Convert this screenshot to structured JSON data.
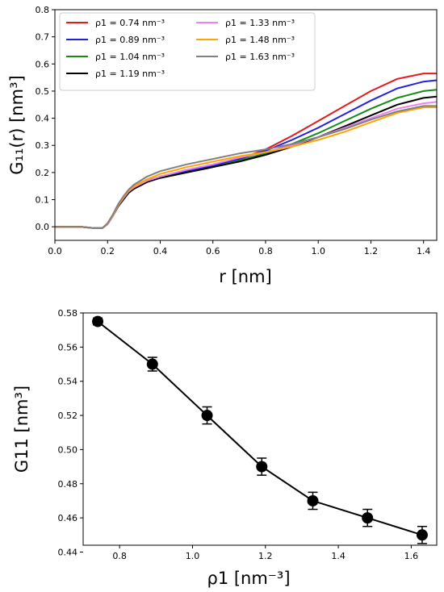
{
  "chart_data": [
    {
      "type": "line",
      "title": "",
      "xlabel": "r [nm]",
      "ylabel": "G₁₁(r) [nm³]",
      "xlim": [
        0.0,
        1.45
      ],
      "ylim": [
        -0.05,
        0.8
      ],
      "xticks": [
        "0.0",
        "0.2",
        "0.4",
        "0.6",
        "0.8",
        "1.0",
        "1.2",
        "1.4"
      ],
      "yticks": [
        "0.0",
        "0.1",
        "0.2",
        "0.3",
        "0.4",
        "0.5",
        "0.6",
        "0.7",
        "0.8"
      ],
      "legend_position": "top-left",
      "legend_columns": 2,
      "grid": false,
      "x": [
        0.0,
        0.05,
        0.1,
        0.15,
        0.18,
        0.2,
        0.22,
        0.24,
        0.26,
        0.28,
        0.3,
        0.35,
        0.4,
        0.5,
        0.6,
        0.7,
        0.8,
        0.9,
        1.0,
        1.1,
        1.2,
        1.3,
        1.4,
        1.45
      ],
      "series": [
        {
          "name": "ρ1 = 0.74 nm⁻³",
          "color": "#e41a1c",
          "values": [
            0.0,
            0.0,
            0.0,
            -0.005,
            -0.005,
            0.01,
            0.04,
            0.075,
            0.105,
            0.13,
            0.145,
            0.17,
            0.185,
            0.205,
            0.225,
            0.25,
            0.285,
            0.335,
            0.39,
            0.445,
            0.5,
            0.545,
            0.565,
            0.565
          ]
        },
        {
          "name": "ρ1 = 0.89 nm⁻³",
          "color": "#1f1fe6",
          "values": [
            0.0,
            0.0,
            0.0,
            -0.005,
            -0.005,
            0.01,
            0.04,
            0.075,
            0.105,
            0.13,
            0.145,
            0.17,
            0.185,
            0.205,
            0.225,
            0.25,
            0.28,
            0.32,
            0.365,
            0.415,
            0.465,
            0.51,
            0.535,
            0.54
          ]
        },
        {
          "name": "ρ1 = 1.04 nm⁻³",
          "color": "#168a16",
          "values": [
            0.0,
            0.0,
            0.0,
            -0.005,
            -0.005,
            0.01,
            0.04,
            0.075,
            0.1,
            0.125,
            0.14,
            0.165,
            0.18,
            0.2,
            0.22,
            0.245,
            0.27,
            0.305,
            0.345,
            0.39,
            0.435,
            0.475,
            0.5,
            0.505
          ]
        },
        {
          "name": "ρ1 = 1.19 nm⁻³",
          "color": "#000000",
          "values": [
            0.0,
            0.0,
            0.0,
            -0.005,
            -0.005,
            0.01,
            0.04,
            0.075,
            0.1,
            0.125,
            0.14,
            0.165,
            0.18,
            0.2,
            0.22,
            0.24,
            0.265,
            0.295,
            0.33,
            0.37,
            0.41,
            0.45,
            0.475,
            0.48
          ]
        },
        {
          "name": "ρ1 = 1.33 nm⁻³",
          "color": "#ee82ee",
          "values": [
            0.0,
            0.0,
            0.0,
            -0.005,
            -0.005,
            0.01,
            0.04,
            0.078,
            0.105,
            0.13,
            0.145,
            0.17,
            0.185,
            0.21,
            0.23,
            0.255,
            0.275,
            0.3,
            0.33,
            0.365,
            0.4,
            0.435,
            0.455,
            0.46
          ]
        },
        {
          "name": "ρ1 = 1.48 nm⁻³",
          "color": "#ffa500",
          "values": [
            0.0,
            0.0,
            0.0,
            -0.005,
            -0.005,
            0.012,
            0.042,
            0.08,
            0.108,
            0.133,
            0.15,
            0.175,
            0.195,
            0.22,
            0.24,
            0.26,
            0.275,
            0.295,
            0.32,
            0.35,
            0.385,
            0.42,
            0.44,
            0.44
          ]
        },
        {
          "name": "ρ1 = 1.63 nm⁻³",
          "color": "#808080",
          "values": [
            0.0,
            0.0,
            0.0,
            -0.005,
            -0.005,
            0.013,
            0.045,
            0.083,
            0.112,
            0.137,
            0.155,
            0.185,
            0.205,
            0.23,
            0.25,
            0.27,
            0.285,
            0.305,
            0.33,
            0.36,
            0.395,
            0.425,
            0.445,
            0.445
          ]
        }
      ]
    },
    {
      "type": "line",
      "title": "",
      "xlabel": "ρ1 [nm⁻³]",
      "ylabel": "G11 [nm³]",
      "xlim": [
        0.7,
        1.67
      ],
      "ylim": [
        0.444,
        0.58
      ],
      "xticks": [
        "0.8",
        "1.0",
        "1.2",
        "1.4",
        "1.6"
      ],
      "yticks": [
        "0.44",
        "0.46",
        "0.48",
        "0.50",
        "0.52",
        "0.54",
        "0.56",
        "0.58"
      ],
      "grid": false,
      "marker": "circle",
      "color": "#000000",
      "x": [
        0.74,
        0.89,
        1.04,
        1.19,
        1.33,
        1.48,
        1.63
      ],
      "values": [
        0.575,
        0.55,
        0.52,
        0.49,
        0.47,
        0.46,
        0.45
      ],
      "error": [
        0.002,
        0.004,
        0.005,
        0.005,
        0.005,
        0.005,
        0.005
      ]
    }
  ]
}
